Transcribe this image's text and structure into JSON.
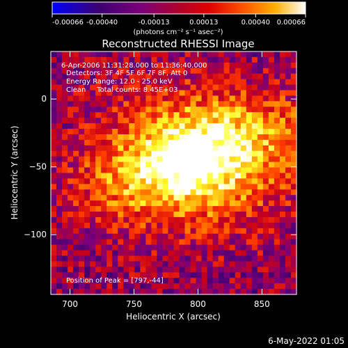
{
  "colorbar": {
    "tick_labels": [
      "-0.00066",
      "-0.00040",
      "-0.00013",
      "0.00013",
      "0.00040",
      "0.00066"
    ],
    "unit_label": "(photons cm⁻² s⁻¹ asec⁻²)",
    "min": -0.00066,
    "max": 0.00066
  },
  "chart_data": {
    "type": "heatmap",
    "title": "Reconstructed RHESSI Image",
    "xlabel": "Heliocentric X (arcsec)",
    "ylabel": "Heliocentric Y (arcsec)",
    "xlim": [
      685,
      877
    ],
    "ylim": [
      -144,
      35
    ],
    "x_ticks": [
      700,
      750,
      800,
      850
    ],
    "y_ticks": [
      0,
      -50,
      -100
    ],
    "peak": {
      "x": 797,
      "y": -44
    },
    "colors": [
      "#0000ff",
      "#3a0070",
      "#7a007a",
      "#c8001a",
      "#ff3a00",
      "#ff9a00",
      "#ffff30",
      "#ffffff"
    ]
  },
  "annotations": {
    "time_range": "6-Apr-2006 11:31:28.000 to 11:36:40.000",
    "detectors": "Detectors: 3F 4F 5F 6F 7F 8F, Att 0",
    "energy": "Energy Range: 12.0 - 25.0 keV",
    "method": "Clean     Total counts: 8.45E+03",
    "peak_label": "Position of Peak = [797,-44]"
  },
  "footer": {
    "date": "6-May-2022 01:05"
  }
}
